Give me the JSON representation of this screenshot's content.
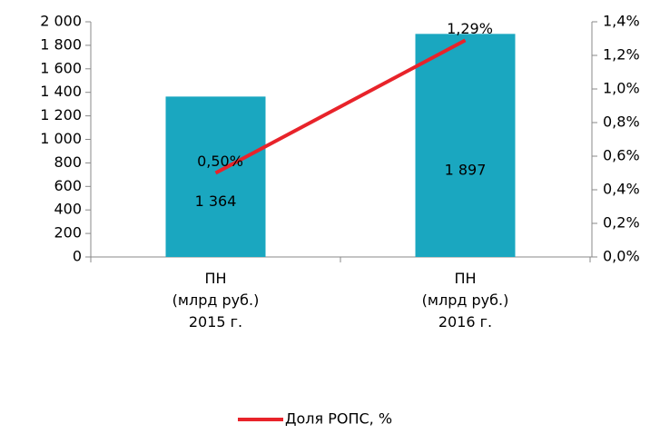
{
  "chart_data": {
    "type": "bar",
    "categories": [
      [
        "ПН",
        "(млрд руб.)",
        "2015 г."
      ],
      [
        "ПН",
        "(млрд руб.)",
        "2016 г."
      ]
    ],
    "series": [
      {
        "type": "bar",
        "color": "#1aa7c0",
        "values": [
          1364,
          1897
        ],
        "value_labels": [
          "1 364",
          "1 897"
        ]
      },
      {
        "type": "line",
        "name": "Доля РОПС, %",
        "axis": "y2",
        "color": "#e8232a",
        "values": [
          0.5,
          1.29
        ],
        "value_labels": [
          "0,50%",
          "1,29%"
        ]
      }
    ],
    "ylim": [
      0,
      2000
    ],
    "yticks": [
      0,
      200,
      400,
      600,
      800,
      {
        "value": 1000,
        "label": "1 000"
      },
      {
        "value": 1200,
        "label": "1 200"
      },
      {
        "value": 1400,
        "label": "1 400"
      },
      {
        "value": 1600,
        "label": "1 600"
      },
      {
        "value": 1800,
        "label": "1 800"
      },
      {
        "value": 2000,
        "label": "2 000"
      }
    ],
    "y2lim": [
      0,
      1.4
    ],
    "y2ticks": [
      {
        "value": 0,
        "label": "0,0%"
      },
      {
        "value": 0.2,
        "label": "0,2%"
      },
      {
        "value": 0.4,
        "label": "0,4%"
      },
      {
        "value": 0.6,
        "label": "0,6%"
      },
      {
        "value": 0.8,
        "label": "0,8%"
      },
      {
        "value": 1.0,
        "label": "1,0%"
      },
      {
        "value": 1.2,
        "label": "1,2%"
      },
      {
        "value": 1.4,
        "label": "1,4%"
      }
    ],
    "legend": "bottom"
  }
}
